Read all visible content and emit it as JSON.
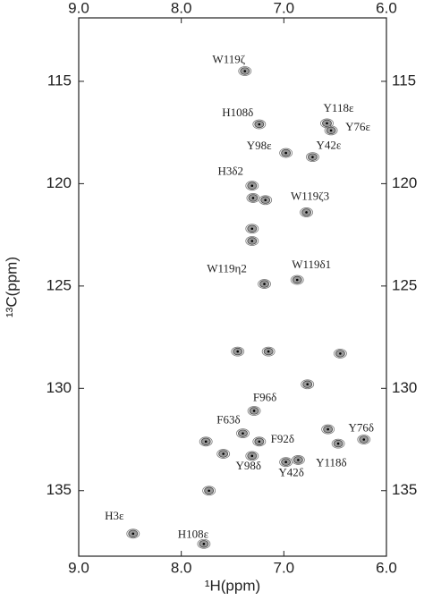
{
  "chart_data": {
    "type": "scatter",
    "x_label": "¹H(ppm)",
    "y_label": "¹³C(ppm)",
    "xlim": [
      9,
      6
    ],
    "ylim": [
      111.9,
      138.2
    ],
    "xticks": [
      {
        "value": 9,
        "label": "9.0"
      },
      {
        "value": 8,
        "label": "8.0"
      },
      {
        "value": 7,
        "label": "7.0"
      },
      {
        "value": 6,
        "label": "6.0"
      }
    ],
    "yticks": [
      115,
      120,
      125,
      130,
      135
    ],
    "series": [
      {
        "color": "#999999",
        "labels": [
          "W119ζ",
          "H108δ",
          "Y118ε",
          "Y76ε",
          "Y98ε",
          "Y42ε",
          "H3δ2",
          "W119ζ3",
          "W119η2",
          "W119δ1",
          "F96δ",
          "F63δ",
          "F92δ",
          "Y76δ",
          "Y98δ",
          "Y42δ",
          "Y118δ",
          "H3ε",
          "H108ε"
        ],
        "x": [
          7.38,
          7.24,
          6.58,
          6.54,
          6.98,
          6.72,
          7.31,
          6.78,
          7.19,
          6.87,
          7.29,
          7.4,
          7.24,
          6.22,
          7.31,
          6.98,
          6.86,
          8.47,
          7.78
        ],
        "y": [
          114.5,
          117.1,
          117.05,
          117.4,
          118.5,
          118.7,
          120.1,
          121.4,
          124.9,
          124.7,
          131.1,
          132.2,
          132.6,
          132.5,
          133.3,
          133.6,
          133.5,
          137.1,
          137.6
        ]
      },
      {
        "color": "#999999",
        "x": [
          7.45,
          7.15,
          6.45,
          6.77,
          7.76,
          7.59,
          6.57,
          7.73,
          7.3,
          7.18,
          7.31,
          7.31,
          6.47
        ],
        "y": [
          128.2,
          128.2,
          128.3,
          129.8,
          132.6,
          133.2,
          132.0,
          135.0,
          120.7,
          120.8,
          122.2,
          122.8,
          132.7
        ]
      }
    ]
  }
}
